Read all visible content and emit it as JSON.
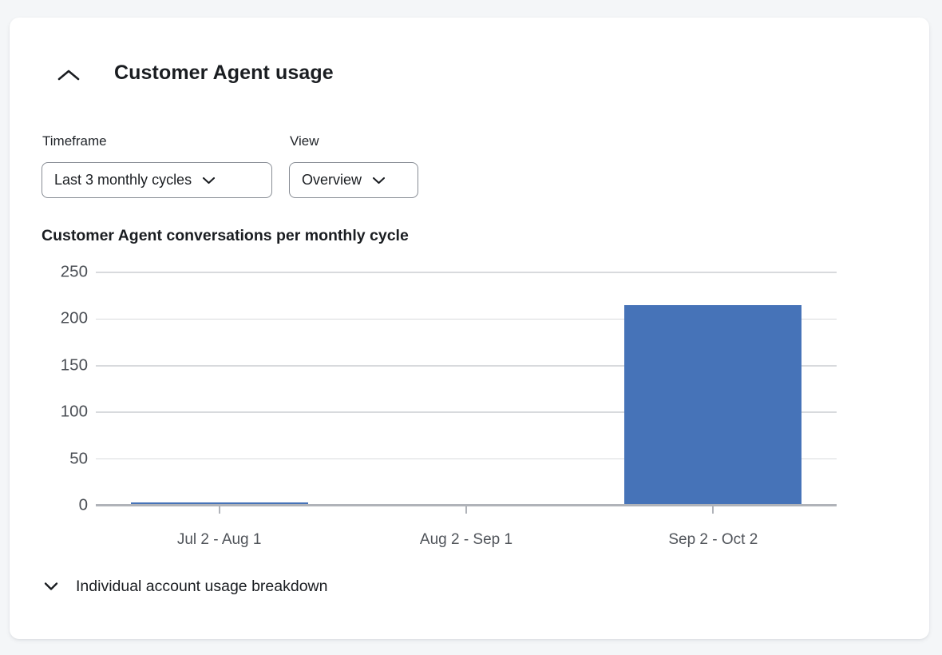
{
  "header": {
    "title": "Customer Agent usage",
    "collapse_icon": "chevron-up"
  },
  "filters": {
    "timeframe": {
      "label": "Timeframe",
      "value": "Last 3 monthly cycles"
    },
    "view": {
      "label": "View",
      "value": "Overview"
    }
  },
  "chart_data": {
    "type": "bar",
    "title": "Customer Agent conversations per monthly cycle",
    "categories": [
      "Jul 2 - Aug 1",
      "Aug 2 - Sep 1",
      "Sep 2 - Oct 2"
    ],
    "values": [
      2,
      0,
      213
    ],
    "xlabel": "",
    "ylabel": "",
    "ylim": [
      0,
      250
    ],
    "yticks": [
      0,
      50,
      100,
      150,
      200,
      250
    ],
    "grid": true,
    "legend": "none",
    "bar_color": "#4673b8"
  },
  "breakdown": {
    "label": "Individual account usage breakdown",
    "expand_icon": "chevron-down"
  },
  "colors": {
    "page_background": "#f4f6f8",
    "card_background": "#ffffff",
    "text_dark": "#1a1d21",
    "axis_text_gray": "#4b4f55",
    "gridline": "#d8dadd",
    "axis_line": "#b0b3b9",
    "bar": "#4673b8"
  }
}
